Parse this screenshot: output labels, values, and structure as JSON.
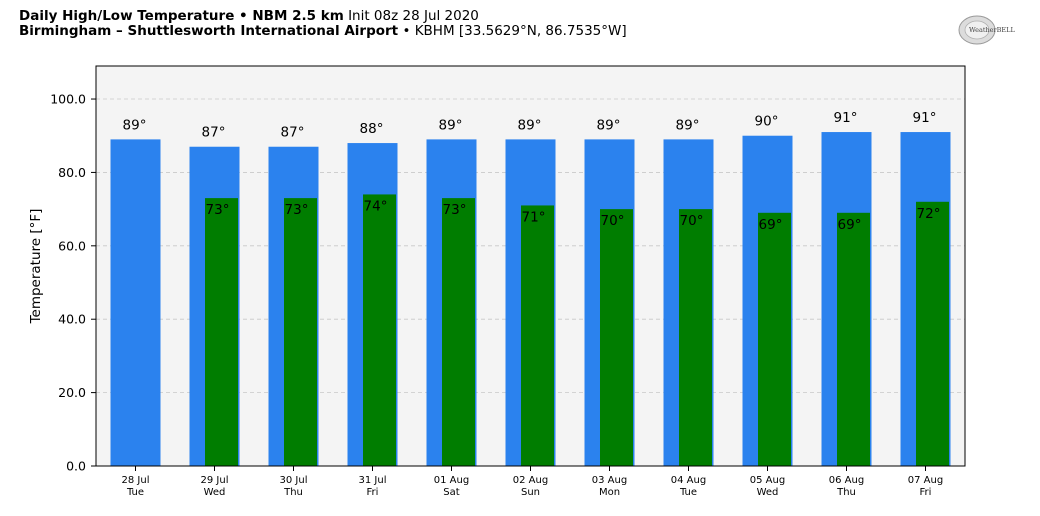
{
  "header": {
    "line1_bold": "Daily High/Low Temperature • NBM 2.5 km",
    "line1_light": "Init 08z 28 Jul 2020",
    "line2_bold": "Birmingham – Shuttlesworth International Airport",
    "line2_light": "• KBHM [33.5629°N, 86.7535°W]"
  },
  "logo": {
    "text": "WeatherBELL"
  },
  "chart_data": {
    "type": "bar",
    "title": "Daily High/Low Temperature • NBM 2.5 km",
    "ylabel": "Temperature [°F]",
    "xlabel": "",
    "ylim": [
      0,
      109
    ],
    "yticks": [
      0.0,
      20.0,
      40.0,
      60.0,
      80.0,
      100.0
    ],
    "ytick_labels": [
      "0.0",
      "20.0",
      "40.0",
      "60.0",
      "80.0",
      "100.0"
    ],
    "grid": true,
    "legend": "none",
    "categories": [
      {
        "date": "28 Jul",
        "day": "Tue"
      },
      {
        "date": "29 Jul",
        "day": "Wed"
      },
      {
        "date": "30 Jul",
        "day": "Thu"
      },
      {
        "date": "31 Jul",
        "day": "Fri"
      },
      {
        "date": "01 Aug",
        "day": "Sat"
      },
      {
        "date": "02 Aug",
        "day": "Sun"
      },
      {
        "date": "03 Aug",
        "day": "Mon"
      },
      {
        "date": "04 Aug",
        "day": "Tue"
      },
      {
        "date": "05 Aug",
        "day": "Wed"
      },
      {
        "date": "06 Aug",
        "day": "Thu"
      },
      {
        "date": "07 Aug",
        "day": "Fri"
      }
    ],
    "series": [
      {
        "key": "high",
        "color": "#2b82ee",
        "values": [
          89,
          87,
          87,
          88,
          89,
          89,
          89,
          89,
          90,
          91,
          91
        ],
        "labels": [
          "89°",
          "87°",
          "87°",
          "88°",
          "89°",
          "89°",
          "89°",
          "89°",
          "90°",
          "91°",
          "91°"
        ]
      },
      {
        "key": "low",
        "color": "#007d00",
        "values": [
          null,
          73,
          73,
          74,
          73,
          71,
          70,
          70,
          69,
          69,
          72
        ],
        "labels": [
          "",
          "73°",
          "73°",
          "74°",
          "73°",
          "71°",
          "70°",
          "70°",
          "69°",
          "69°",
          "72°"
        ]
      }
    ],
    "plot_background": "#f4f4f4"
  }
}
